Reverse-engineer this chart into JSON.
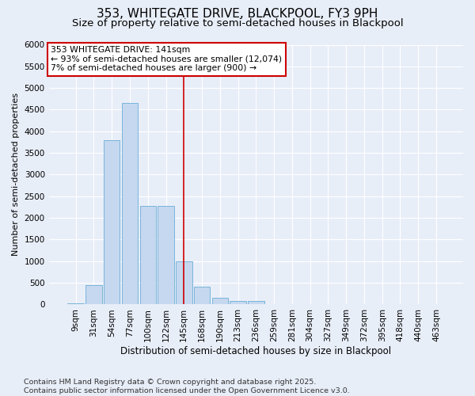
{
  "title1": "353, WHITEGATE DRIVE, BLACKPOOL, FY3 9PH",
  "title2": "Size of property relative to semi-detached houses in Blackpool",
  "xlabel": "Distribution of semi-detached houses by size in Blackpool",
  "ylabel": "Number of semi-detached properties",
  "categories": [
    "9sqm",
    "31sqm",
    "54sqm",
    "77sqm",
    "100sqm",
    "122sqm",
    "145sqm",
    "168sqm",
    "190sqm",
    "213sqm",
    "236sqm",
    "259sqm",
    "281sqm",
    "304sqm",
    "327sqm",
    "349sqm",
    "372sqm",
    "395sqm",
    "418sqm",
    "440sqm",
    "463sqm"
  ],
  "bar_heights": [
    30,
    450,
    3800,
    4650,
    2280,
    2280,
    1000,
    420,
    160,
    90,
    80,
    5,
    0,
    0,
    0,
    0,
    0,
    0,
    0,
    0,
    0
  ],
  "bar_color": "#c5d8ef",
  "bar_edge_color": "#6baed6",
  "vline_index": 6,
  "vline_color": "#cc0000",
  "annotation_title": "353 WHITEGATE DRIVE: 141sqm",
  "annotation_line1": "← 93% of semi-detached houses are smaller (12,074)",
  "annotation_line2": "7% of semi-detached houses are larger (900) →",
  "annotation_box_facecolor": "#ffffff",
  "annotation_box_edgecolor": "#cc0000",
  "ylim": [
    0,
    6000
  ],
  "yticks": [
    0,
    500,
    1000,
    1500,
    2000,
    2500,
    3000,
    3500,
    4000,
    4500,
    5000,
    5500,
    6000
  ],
  "footnote1": "Contains HM Land Registry data © Crown copyright and database right 2025.",
  "footnote2": "Contains public sector information licensed under the Open Government Licence v3.0.",
  "bg_color": "#e8eef8",
  "title1_fontsize": 11,
  "title2_fontsize": 9.5,
  "xlabel_fontsize": 8.5,
  "ylabel_fontsize": 8,
  "tick_fontsize": 7.5,
  "footnote_fontsize": 6.8,
  "annotation_fontsize": 7.8
}
